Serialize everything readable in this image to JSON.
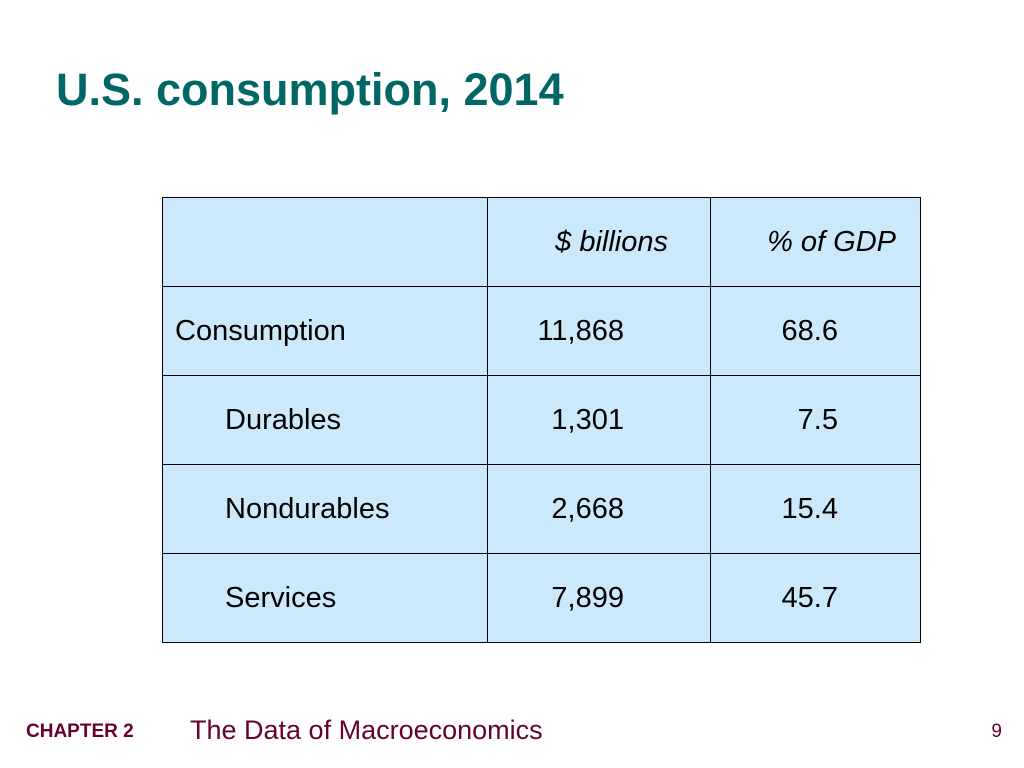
{
  "slide": {
    "title": "U.S. consumption, 2014"
  },
  "table": {
    "header": {
      "label": "",
      "billions": "$ billions",
      "pct_gdp": "% of GDP"
    },
    "rows": [
      {
        "label": "Consumption",
        "billions": "11,868",
        "pct_gdp": "68.6"
      },
      {
        "label": "Durables",
        "billions": "1,301",
        "pct_gdp": "7.5"
      },
      {
        "label": "Nondurables",
        "billions": "2,668",
        "pct_gdp": "15.4"
      },
      {
        "label": "Services",
        "billions": "7,899",
        "pct_gdp": "45.7"
      }
    ]
  },
  "footer": {
    "chapter": "CHAPTER 2",
    "chapter_title": "The Data of Macroeconomics",
    "page_number": "9"
  },
  "colors": {
    "title": "#006666",
    "table_fill": "#cce9fb",
    "footer_text": "#660033"
  }
}
